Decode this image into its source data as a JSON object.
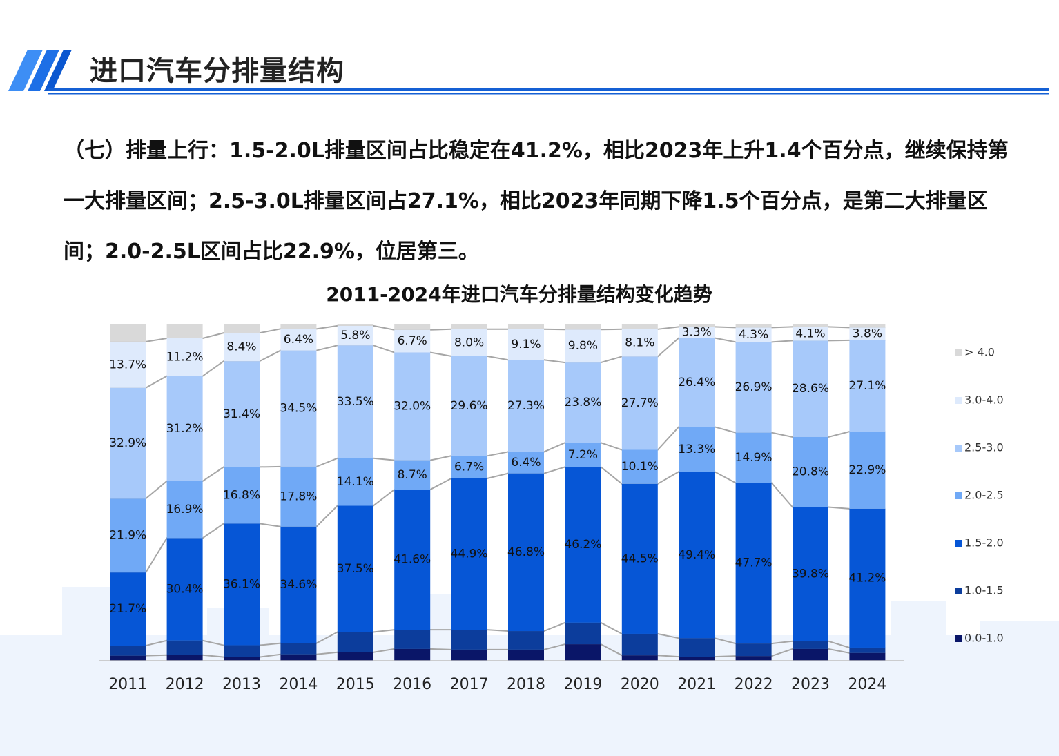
{
  "header": {
    "title": "进口汽车分排量结构"
  },
  "body": {
    "paragraph": "（七）排量上行：1.5-2.0L排量区间占比稳定在41.2%，相比2023年上升1.4个百分点，继续保持第一大排量区间；2.5-3.0L排量区间占27.1%，相比2023年同期下降1.5个百分点，是第二大排量区间；2.0-2.5L区间占比22.9%，位居第三。"
  },
  "chart_data": {
    "type": "stacked_bar",
    "title": "2011-2024年进口汽车分排量结构变化趋势",
    "categories": [
      "2011",
      "2012",
      "2013",
      "2014",
      "2015",
      "2016",
      "2017",
      "2018",
      "2019",
      "2020",
      "2021",
      "2022",
      "2023",
      "2024"
    ],
    "legend": "right",
    "series": [
      {
        "name": "0.0-1.0",
        "color": "#0a1668",
        "values": [
          1.5,
          1.7,
          1.1,
          1.9,
          2.5,
          3.5,
          3.3,
          3.3,
          4.9,
          1.6,
          1.2,
          1.4,
          3.5,
          2.3
        ]
      },
      {
        "name": "1.0-1.5",
        "color": "#0c3d9c",
        "values": [
          3.0,
          4.3,
          3.5,
          3.3,
          6.0,
          5.7,
          5.9,
          5.5,
          6.4,
          6.4,
          5.5,
          3.7,
          2.3,
          1.6
        ]
      },
      {
        "name": "1.5-2.0",
        "color": "#0656d6",
        "values": [
          21.7,
          30.4,
          36.1,
          34.6,
          37.5,
          41.6,
          44.9,
          46.8,
          46.2,
          44.5,
          49.4,
          47.7,
          39.8,
          41.2
        ],
        "value_labels": [
          "21.7%",
          "30.4%",
          "36.1%",
          "34.6%",
          "37.5%",
          "41.6%",
          "44.9%",
          "46.8%",
          "46.2%",
          "44.5%",
          "49.4%",
          "47.7%",
          "39.8%",
          "41.2%"
        ]
      },
      {
        "name": "2.0-2.5",
        "color": "#70a9f6",
        "values": [
          21.9,
          16.9,
          16.8,
          17.8,
          14.1,
          8.7,
          6.7,
          6.4,
          7.2,
          10.1,
          13.3,
          14.9,
          20.8,
          22.9
        ],
        "value_labels": [
          "21.9%",
          "16.9%",
          "16.8%",
          "17.8%",
          "14.1%",
          "8.7%",
          "6.7%",
          "6.4%",
          "7.2%",
          "10.1%",
          "13.3%",
          "14.9%",
          "20.8%",
          "22.9%"
        ]
      },
      {
        "name": "2.5-3.0",
        "color": "#a7c9fa",
        "values": [
          32.9,
          31.2,
          31.4,
          34.5,
          33.5,
          32.0,
          29.6,
          27.3,
          23.8,
          27.7,
          26.4,
          26.9,
          28.6,
          27.1
        ],
        "value_labels": [
          "32.9%",
          "31.2%",
          "31.4%",
          "34.5%",
          "33.5%",
          "32.0%",
          "29.6%",
          "27.3%",
          "23.8%",
          "27.7%",
          "26.4%",
          "26.9%",
          "28.6%",
          "27.1%"
        ]
      },
      {
        "name": "3.0-4.0",
        "color": "#deeafc",
        "values": [
          13.7,
          11.2,
          8.4,
          6.4,
          5.8,
          6.7,
          8.0,
          9.1,
          9.8,
          8.1,
          3.3,
          4.3,
          4.1,
          3.8
        ],
        "value_labels": [
          "13.7%",
          "11.2%",
          "8.4%",
          "6.4%",
          "5.8%",
          "6.7%",
          "8.0%",
          "9.1%",
          "9.8%",
          "8.1%",
          "3.3%",
          "4.3%",
          "4.1%",
          "3.8%"
        ]
      },
      {
        "name": "> 4.0",
        "color": "#d9d9d9",
        "values": [
          5.3,
          4.3,
          2.7,
          1.5,
          0.6,
          1.8,
          1.6,
          1.6,
          1.7,
          1.6,
          0.9,
          1.1,
          0.9,
          1.1
        ]
      }
    ]
  }
}
